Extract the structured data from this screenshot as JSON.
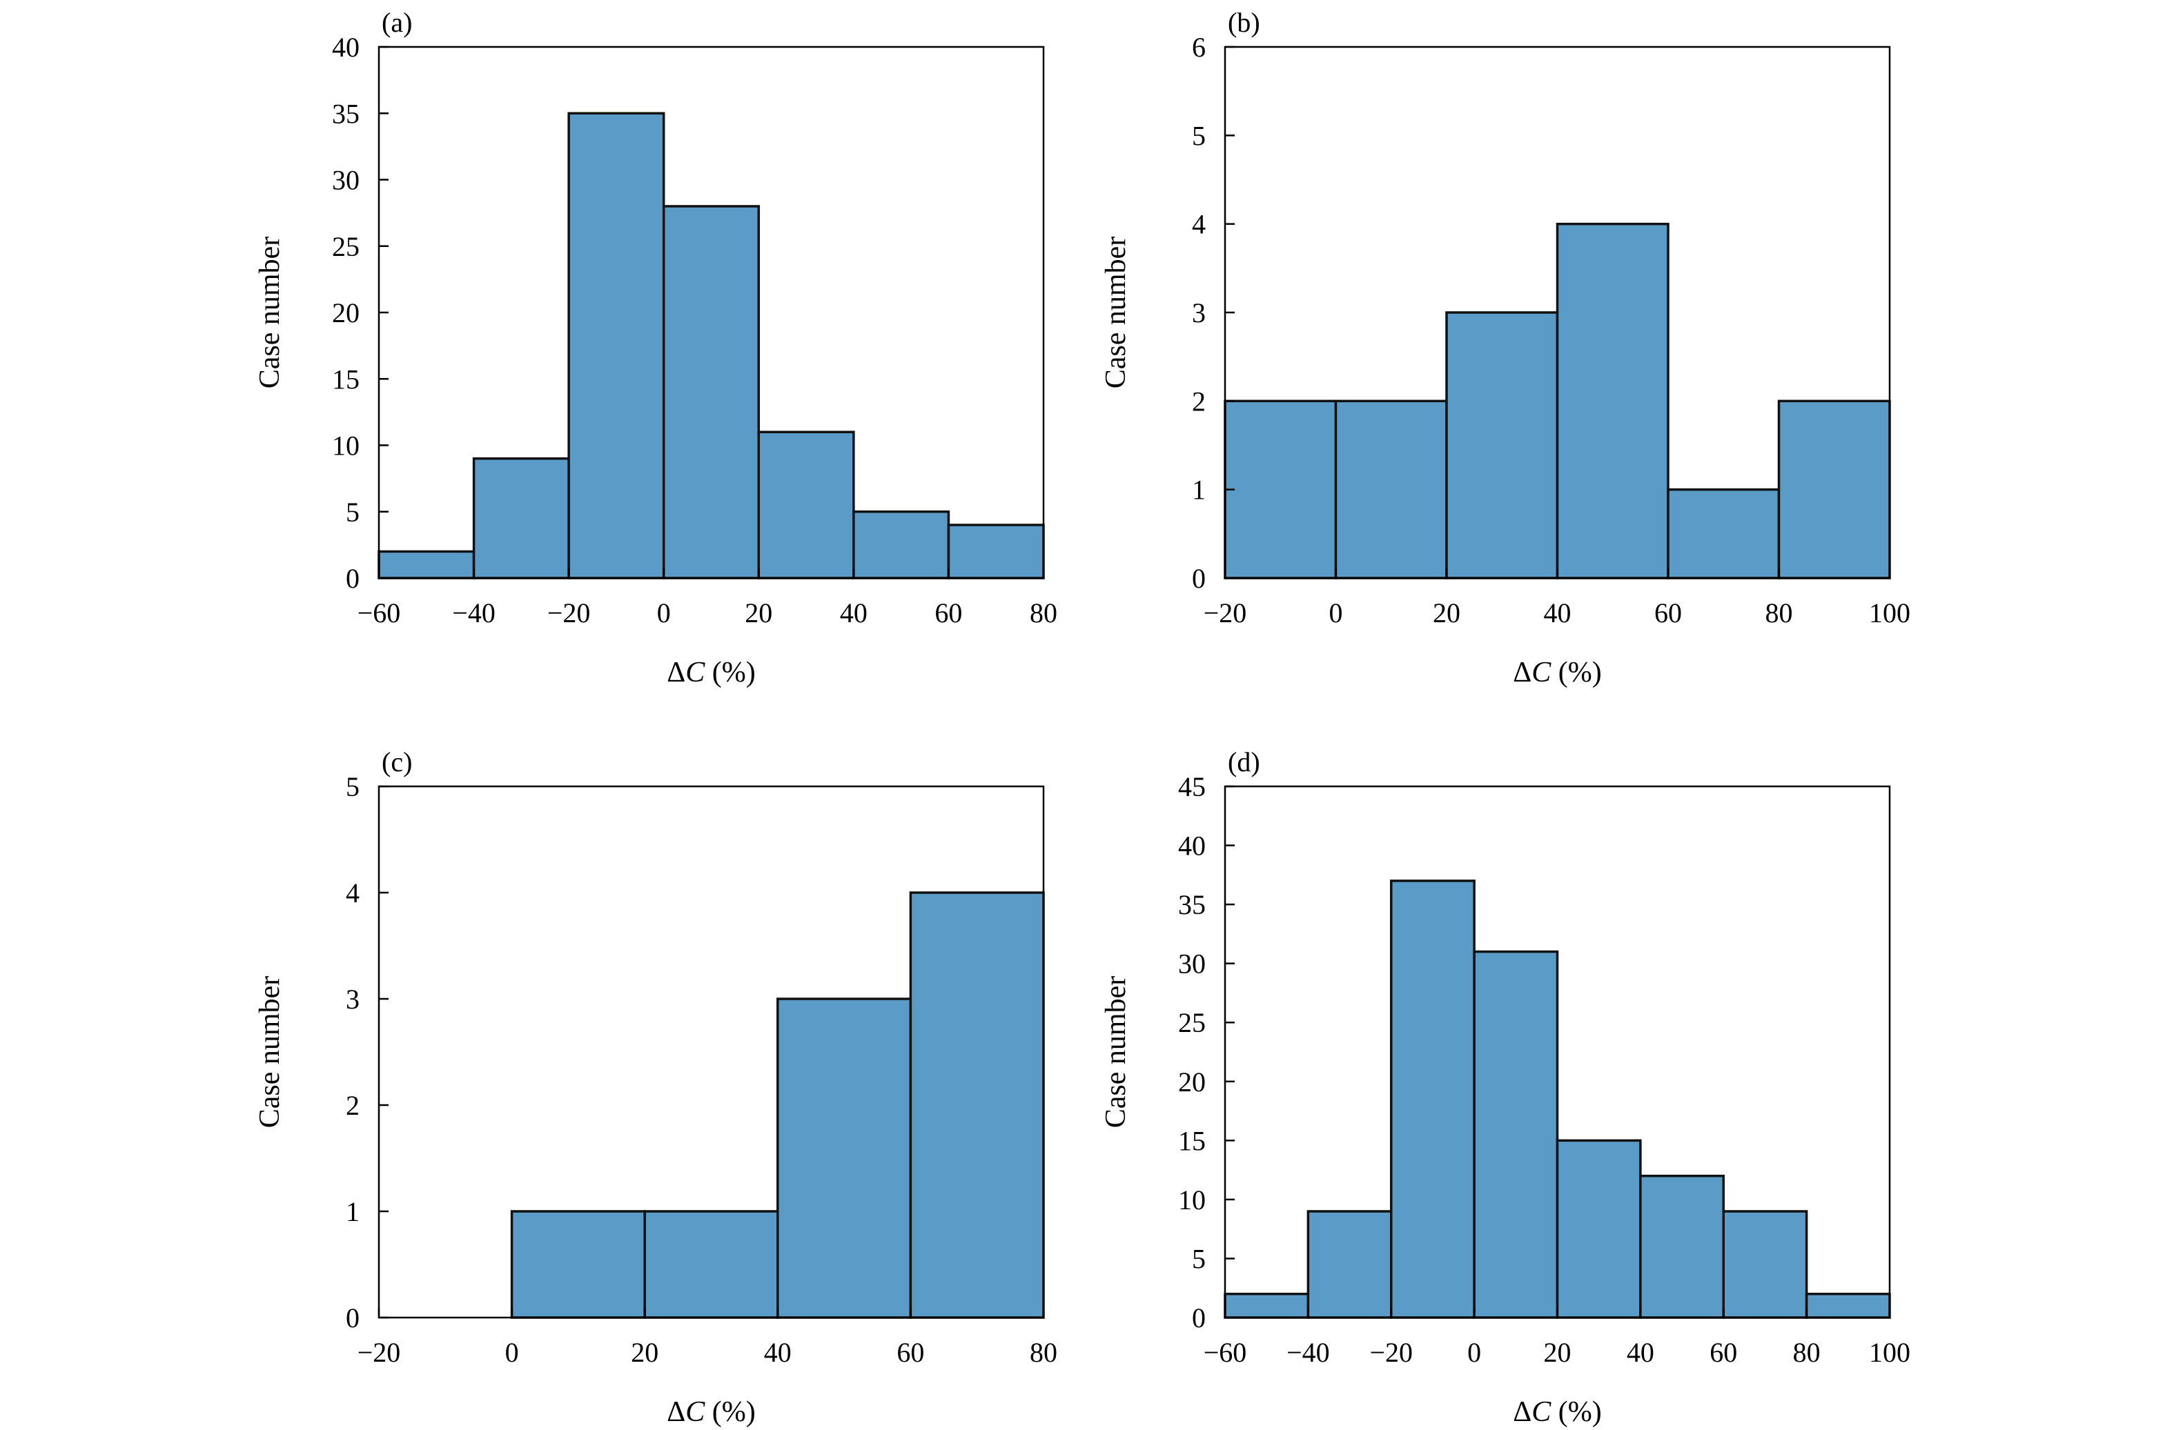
{
  "colors": {
    "bar_fill": "#5b9bc8",
    "bar_stroke": "#111111",
    "axes": "#000000"
  },
  "chart_data": [
    {
      "panel": "(a)",
      "type": "bar",
      "subtype": "histogram",
      "bin_edges": [
        -60,
        -40,
        -20,
        0,
        20,
        40,
        60,
        80
      ],
      "values": [
        2,
        9,
        35,
        28,
        11,
        5,
        4
      ],
      "xlim": [
        -60,
        80
      ],
      "ylim": [
        0,
        40
      ],
      "xticks": [
        -60,
        -40,
        -20,
        0,
        20,
        40,
        60,
        80
      ],
      "yticks": [
        0,
        5,
        10,
        15,
        20,
        25,
        30,
        35,
        40
      ],
      "xlabel": "ΔC (%)",
      "ylabel": "Case number",
      "grid": false
    },
    {
      "panel": "(b)",
      "type": "bar",
      "subtype": "histogram",
      "bin_edges": [
        -20,
        0,
        20,
        40,
        60,
        80,
        100
      ],
      "values": [
        2,
        2,
        3,
        4,
        1,
        2
      ],
      "xlim": [
        -20,
        100
      ],
      "ylim": [
        0,
        6
      ],
      "xticks": [
        -20,
        0,
        20,
        40,
        60,
        80,
        100
      ],
      "yticks": [
        0,
        1,
        2,
        3,
        4,
        5,
        6
      ],
      "xlabel": "ΔC (%)",
      "ylabel": "Case number",
      "grid": false
    },
    {
      "panel": "(c)",
      "type": "bar",
      "subtype": "histogram",
      "bin_edges": [
        -20,
        0,
        20,
        40,
        60,
        80
      ],
      "values": [
        0,
        1,
        1,
        3,
        4
      ],
      "xlim": [
        -20,
        80
      ],
      "ylim": [
        0,
        5
      ],
      "xticks": [
        -20,
        0,
        20,
        40,
        60,
        80
      ],
      "yticks": [
        0,
        1,
        2,
        3,
        4,
        5
      ],
      "xlabel": "ΔC (%)",
      "ylabel": "Case number",
      "grid": false
    },
    {
      "panel": "(d)",
      "type": "bar",
      "subtype": "histogram",
      "bin_edges": [
        -60,
        -40,
        -20,
        0,
        20,
        40,
        60,
        80,
        100
      ],
      "values": [
        2,
        9,
        37,
        31,
        15,
        12,
        9,
        2
      ],
      "xlim": [
        -60,
        100
      ],
      "ylim": [
        0,
        45
      ],
      "xticks": [
        -60,
        -40,
        -20,
        0,
        20,
        40,
        60,
        80,
        100
      ],
      "yticks": [
        0,
        5,
        10,
        15,
        20,
        25,
        30,
        35,
        40,
        45
      ],
      "xlabel": "ΔC (%)",
      "ylabel": "Case number",
      "grid": false
    }
  ]
}
